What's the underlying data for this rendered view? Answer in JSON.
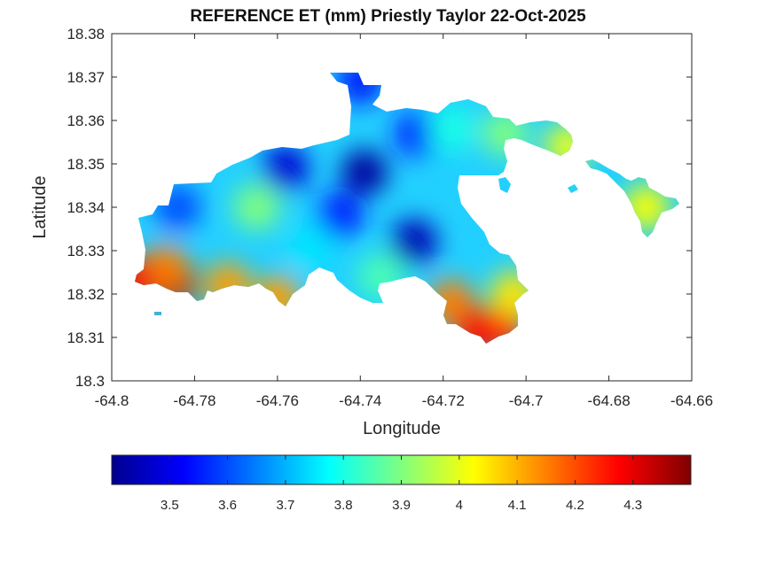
{
  "chart_data": {
    "type": "heatmap",
    "title": "REFERENCE ET (mm) Priestly Taylor 22-Oct-2025",
    "xlabel": "Longitude",
    "ylabel": "Latitude",
    "xlim": [
      -64.8,
      -64.66
    ],
    "ylim": [
      18.3,
      18.38
    ],
    "xticks": [
      "-64.8",
      "-64.78",
      "-64.76",
      "-64.74",
      "-64.72",
      "-64.7",
      "-64.68",
      "-64.66"
    ],
    "yticks": [
      "18.3",
      "18.31",
      "18.32",
      "18.33",
      "18.34",
      "18.35",
      "18.36",
      "18.37",
      "18.38"
    ],
    "colormap": "jet",
    "color_range": [
      3.4,
      4.4
    ],
    "colorbar_ticks": [
      "3.5",
      "3.6",
      "3.7",
      "3.8",
      "3.9",
      "4",
      "4.1",
      "4.2",
      "4.3"
    ],
    "colorbar_position": "bottom",
    "grid": false,
    "hotspots": [
      {
        "lon": -64.785,
        "lat": 18.3225,
        "value": 4.35
      },
      {
        "lon": -64.787,
        "lat": 18.326,
        "value": 4.15
      },
      {
        "lon": -64.795,
        "lat": 18.323,
        "value": 4.28
      },
      {
        "lon": -64.772,
        "lat": 18.322,
        "value": 4.12
      },
      {
        "lon": -64.76,
        "lat": 18.319,
        "value": 4.12
      },
      {
        "lon": -64.718,
        "lat": 18.318,
        "value": 4.15
      },
      {
        "lon": -64.712,
        "lat": 18.3115,
        "value": 4.28
      },
      {
        "lon": -64.706,
        "lat": 18.312,
        "value": 4.25
      },
      {
        "lon": -64.703,
        "lat": 18.32,
        "value": 4.05
      },
      {
        "lon": -64.739,
        "lat": 18.348,
        "value": 3.43
      },
      {
        "lon": -64.727,
        "lat": 18.332,
        "value": 3.45
      },
      {
        "lon": -64.758,
        "lat": 18.349,
        "value": 3.48
      },
      {
        "lon": -64.745,
        "lat": 18.338,
        "value": 3.55
      },
      {
        "lon": -64.726,
        "lat": 18.357,
        "value": 3.55
      },
      {
        "lon": -64.74,
        "lat": 18.369,
        "value": 3.55
      },
      {
        "lon": -64.784,
        "lat": 18.34,
        "value": 3.6
      },
      {
        "lon": -64.765,
        "lat": 18.34,
        "value": 3.9
      },
      {
        "lon": -64.752,
        "lat": 18.331,
        "value": 3.75
      },
      {
        "lon": -64.735,
        "lat": 18.324,
        "value": 3.85
      },
      {
        "lon": -64.718,
        "lat": 18.358,
        "value": 3.8
      },
      {
        "lon": -64.705,
        "lat": 18.357,
        "value": 3.9
      },
      {
        "lon": -64.69,
        "lat": 18.354,
        "value": 4.0
      },
      {
        "lon": -64.671,
        "lat": 18.34,
        "value": 4.02
      }
    ]
  }
}
